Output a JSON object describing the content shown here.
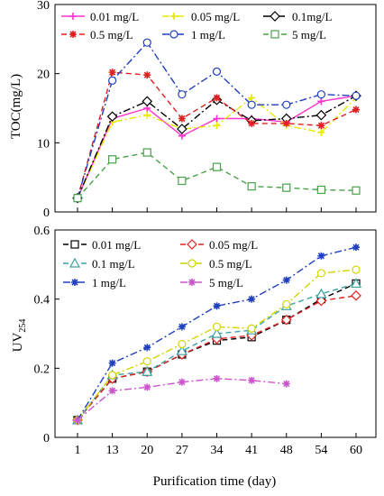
{
  "chart_data": [
    {
      "type": "line",
      "id": "toc",
      "ylabel": "TOC(mg/L)",
      "xlabel": "",
      "categories": [
        "1",
        "13",
        "20",
        "27",
        "34",
        "41",
        "48",
        "54",
        "60"
      ],
      "ylim": [
        0,
        30
      ],
      "yticks": [
        0,
        10,
        20,
        30
      ],
      "grid": false,
      "legend_placement": "top",
      "series": [
        {
          "name": "0.01 mg/L",
          "color": "#ff33cc",
          "dash": "solid",
          "marker": "plus",
          "values": [
            2,
            13.5,
            15,
            11,
            13.5,
            13.5,
            13,
            16,
            16.8
          ]
        },
        {
          "name": "0.05 mg/L",
          "color": "#e8e800",
          "dash": "dashdot",
          "marker": "plus",
          "values": [
            2,
            13,
            14,
            12,
            12.5,
            16.5,
            12.5,
            11.5,
            16.5
          ]
        },
        {
          "name": "0.1mg/L",
          "color": "#000000",
          "dash": "dashdot",
          "marker": "diamond",
          "values": [
            2,
            13.8,
            16,
            12,
            16.2,
            13.2,
            13.5,
            14,
            16.8
          ]
        },
        {
          "name": "0.5 mg/L",
          "color": "#e02020",
          "dash": "dashed",
          "marker": "star",
          "values": [
            2,
            20.2,
            19.8,
            13.5,
            16.5,
            12.8,
            12.8,
            12.5,
            14.8
          ]
        },
        {
          "name": "1 mg/L",
          "color": "#1f3fbf",
          "dash": "dashdot",
          "marker": "circle",
          "values": [
            2,
            19,
            24.5,
            17,
            20.3,
            15.5,
            15.5,
            17,
            16.8
          ]
        },
        {
          "name": "5 mg/L",
          "color": "#4aa14a",
          "dash": "dashed",
          "marker": "square",
          "values": [
            2,
            7.6,
            8.6,
            4.5,
            6.5,
            3.7,
            3.5,
            3.2,
            3.1
          ]
        }
      ]
    },
    {
      "type": "line",
      "id": "uv",
      "ylabel": "UV254",
      "ylabel_main": "UV",
      "ylabel_sub": "254",
      "xlabel": "Purification time (day)",
      "categories": [
        "1",
        "13",
        "20",
        "27",
        "34",
        "41",
        "48",
        "54",
        "60"
      ],
      "ylim": [
        0,
        0.6
      ],
      "yticks": [
        "0",
        "0.2",
        "0.4",
        "0.6"
      ],
      "grid": false,
      "legend_placement": "top-left",
      "series": [
        {
          "name": "0.01 mg/L",
          "color": "#000000",
          "dash": "dashed",
          "marker": "square",
          "values": [
            0.05,
            0.17,
            0.19,
            0.24,
            0.28,
            0.29,
            0.34,
            0.4,
            0.445
          ]
        },
        {
          "name": "0.05 mg/L",
          "color": "#e02020",
          "dash": "dashed",
          "marker": "diamond",
          "values": [
            0.05,
            0.17,
            0.19,
            0.24,
            0.285,
            0.295,
            0.34,
            0.395,
            0.41
          ]
        },
        {
          "name": "0.1 mg/L",
          "color": "#3aa3a3",
          "dash": "dashed",
          "marker": "triangle",
          "values": [
            0.05,
            0.18,
            0.19,
            0.25,
            0.3,
            0.31,
            0.38,
            0.415,
            0.445
          ]
        },
        {
          "name": "0.5 mg/L",
          "color": "#d4d400",
          "dash": "dashdot",
          "marker": "circle",
          "values": [
            0.05,
            0.18,
            0.22,
            0.27,
            0.32,
            0.315,
            0.385,
            0.475,
            0.485
          ]
        },
        {
          "name": "1 mg/L",
          "color": "#1f3fbf",
          "dash": "dashdot",
          "marker": "star",
          "values": [
            0.05,
            0.215,
            0.26,
            0.32,
            0.38,
            0.4,
            0.455,
            0.525,
            0.55
          ]
        },
        {
          "name": "5 mg/L",
          "color": "#cc55cc",
          "dash": "dashdot",
          "marker": "star",
          "values": [
            0.05,
            0.135,
            0.145,
            0.16,
            0.17,
            0.165,
            0.155,
            null,
            null
          ]
        }
      ]
    }
  ]
}
